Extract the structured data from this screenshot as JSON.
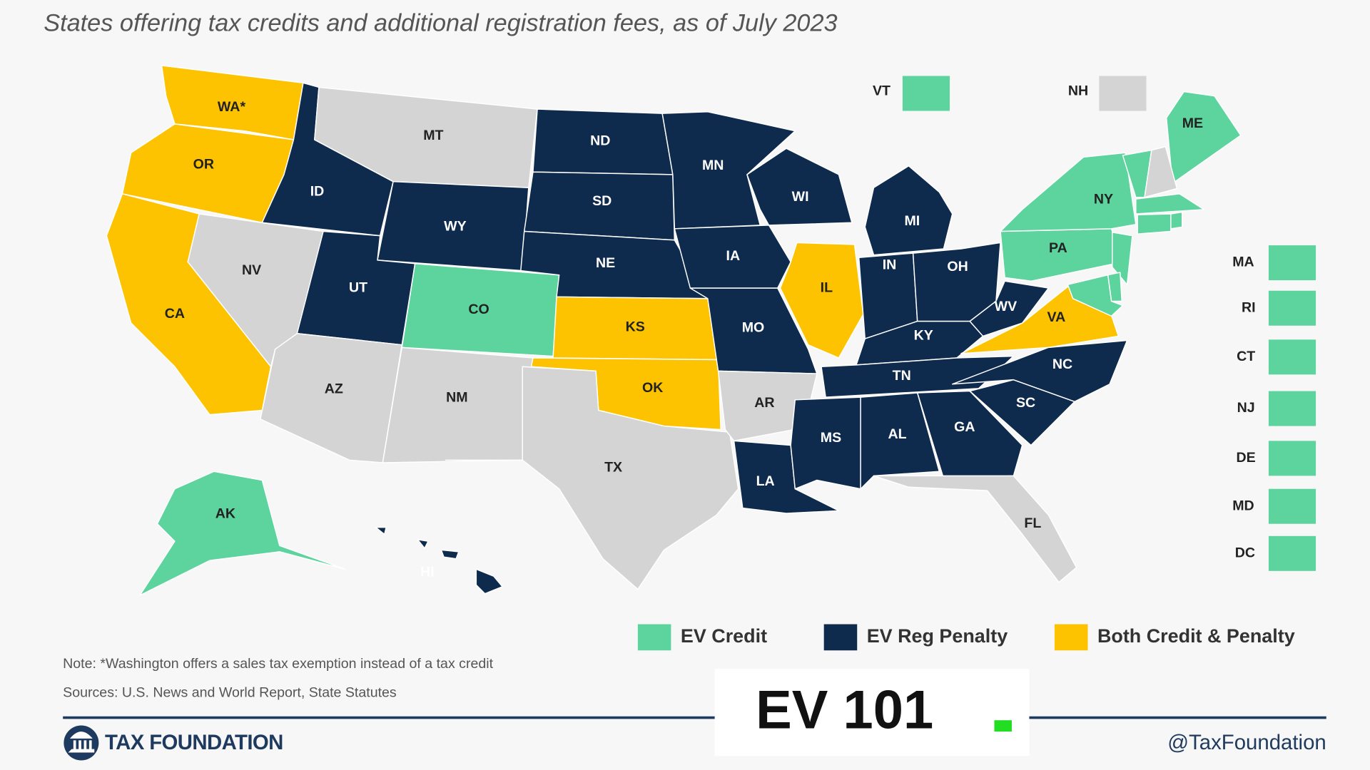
{
  "title": "States offering tax credits and additional registration fees, as of July 2023",
  "legend": [
    {
      "name": "EV Credit",
      "color": "#5dd39e"
    },
    {
      "name": "EV Reg Penalty",
      "color": "#0e2a4d"
    },
    {
      "name": "Both Credit & Penalty",
      "color": "#fdc300"
    }
  ],
  "other_color": "#d4d4d4",
  "states": [
    {
      "label": "WA*",
      "category": "Both Credit & Penalty"
    },
    {
      "label": "OR",
      "category": "Both Credit & Penalty"
    },
    {
      "label": "CA",
      "category": "Both Credit & Penalty"
    },
    {
      "label": "ID",
      "category": "EV Reg Penalty"
    },
    {
      "label": "NV",
      "category": null
    },
    {
      "label": "MT",
      "category": null
    },
    {
      "label": "WY",
      "category": "EV Reg Penalty"
    },
    {
      "label": "UT",
      "category": "EV Reg Penalty"
    },
    {
      "label": "AZ",
      "category": null
    },
    {
      "label": "CO",
      "category": "EV Credit"
    },
    {
      "label": "NM",
      "category": null
    },
    {
      "label": "ND",
      "category": "EV Reg Penalty"
    },
    {
      "label": "SD",
      "category": "EV Reg Penalty"
    },
    {
      "label": "NE",
      "category": "EV Reg Penalty"
    },
    {
      "label": "KS",
      "category": "Both Credit & Penalty"
    },
    {
      "label": "OK",
      "category": "Both Credit & Penalty"
    },
    {
      "label": "TX",
      "category": null
    },
    {
      "label": "MN",
      "category": "EV Reg Penalty"
    },
    {
      "label": "IA",
      "category": "EV Reg Penalty"
    },
    {
      "label": "MO",
      "category": "EV Reg Penalty"
    },
    {
      "label": "AR",
      "category": null
    },
    {
      "label": "LA",
      "category": "EV Reg Penalty"
    },
    {
      "label": "WI",
      "category": "EV Reg Penalty"
    },
    {
      "label": "IL",
      "category": "Both Credit & Penalty"
    },
    {
      "label": "MI",
      "category": "EV Reg Penalty"
    },
    {
      "label": "IN",
      "category": "EV Reg Penalty"
    },
    {
      "label": "OH",
      "category": "EV Reg Penalty"
    },
    {
      "label": "KY",
      "category": "EV Reg Penalty"
    },
    {
      "label": "TN",
      "category": "EV Reg Penalty"
    },
    {
      "label": "MS",
      "category": "EV Reg Penalty"
    },
    {
      "label": "AL",
      "category": "EV Reg Penalty"
    },
    {
      "label": "GA",
      "category": "EV Reg Penalty"
    },
    {
      "label": "FL",
      "category": null
    },
    {
      "label": "SC",
      "category": "EV Reg Penalty"
    },
    {
      "label": "NC",
      "category": "EV Reg Penalty"
    },
    {
      "label": "VA",
      "category": "Both Credit & Penalty"
    },
    {
      "label": "WV",
      "category": "EV Reg Penalty"
    },
    {
      "label": "PA",
      "category": "EV Credit"
    },
    {
      "label": "NY",
      "category": "EV Credit"
    },
    {
      "label": "ME",
      "category": "EV Credit"
    },
    {
      "label": "AK",
      "category": "EV Credit"
    },
    {
      "label": "HI",
      "category": "EV Reg Penalty"
    }
  ],
  "callouts": [
    {
      "label": "VT",
      "category": "EV Credit"
    },
    {
      "label": "NH",
      "category": null
    },
    {
      "label": "MA",
      "category": "EV Credit"
    },
    {
      "label": "RI",
      "category": "EV Credit"
    },
    {
      "label": "CT",
      "category": "EV Credit"
    },
    {
      "label": "NJ",
      "category": "EV Credit"
    },
    {
      "label": "DE",
      "category": "EV Credit"
    },
    {
      "label": "MD",
      "category": "EV Credit"
    },
    {
      "label": "DC",
      "category": "EV Credit"
    }
  ],
  "note": "Note: *Washington offers a sales tax exemption instead of a tax credit",
  "sources": "Sources: U.S. News and World Report, State Statutes",
  "badge": "EV 101",
  "logo_text": "TAX FOUNDATION",
  "handle": "@TaxFoundation"
}
